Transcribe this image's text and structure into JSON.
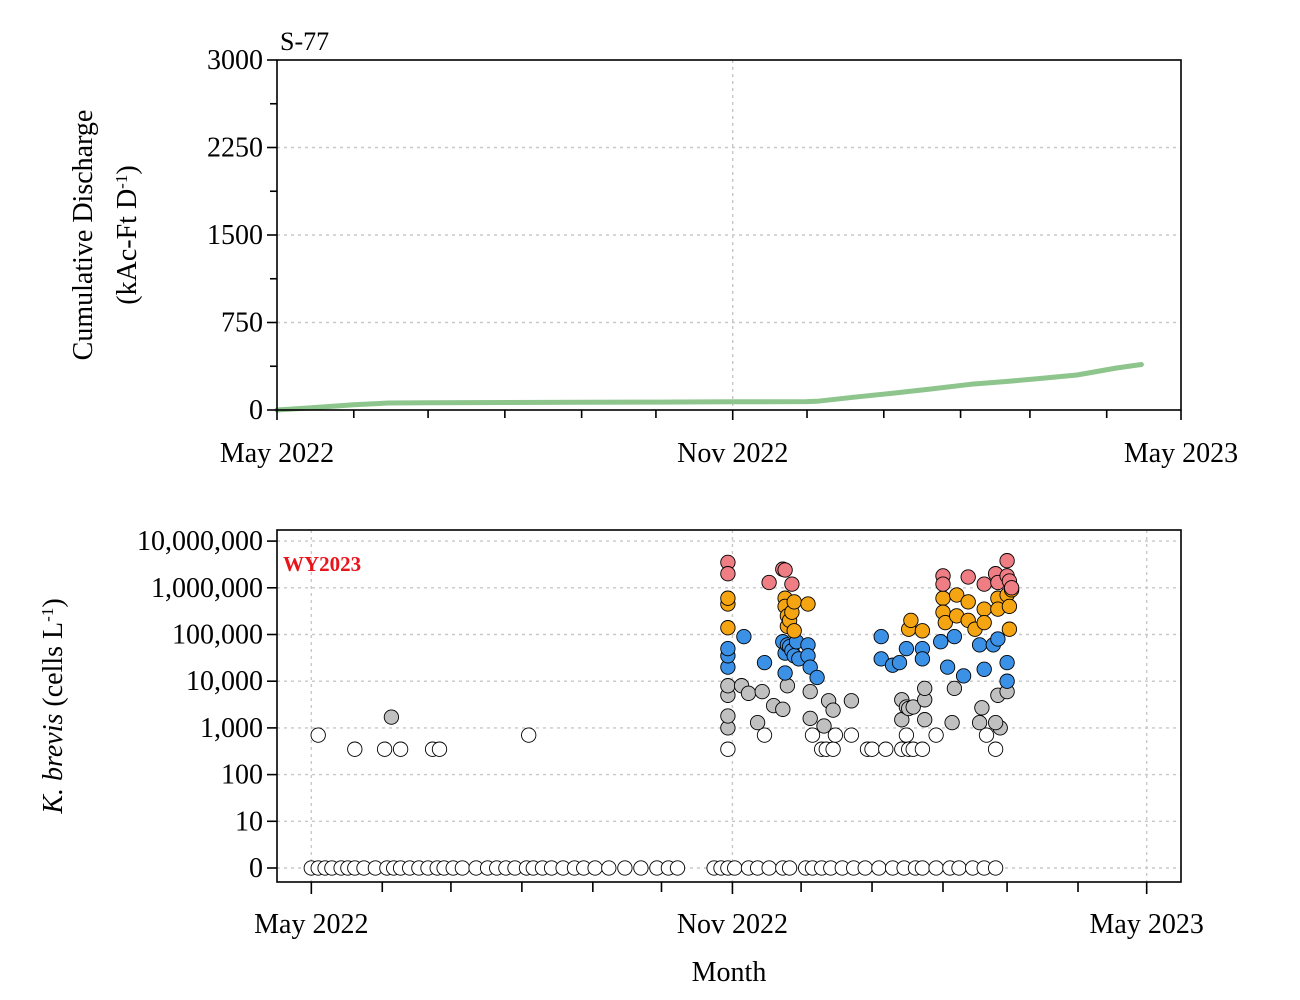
{
  "chart_data": [
    {
      "type": "line",
      "title": "S-77",
      "xlabel": "",
      "ylabel_line1": "Cumulative Discharge",
      "ylabel_line2": "(kAc-Ft D",
      "ylabel_sup": "-1",
      "ylabel_close": ")",
      "xlim": [
        "2022-05-01",
        "2023-05-01"
      ],
      "ylim": [
        0,
        3000
      ],
      "x_ticks": [
        "May 2022",
        "Nov 2022",
        "May 2023"
      ],
      "y_ticks": [
        "0",
        "750",
        "1500",
        "2250",
        "3000"
      ],
      "grid": true,
      "series": [
        {
          "color": "#8dc58d",
          "x": [
            "2022-05-01",
            "2022-05-15",
            "2022-06-01",
            "2022-06-15",
            "2022-07-01",
            "2022-08-01",
            "2022-09-01",
            "2022-10-01",
            "2022-11-01",
            "2022-12-01",
            "2022-12-05",
            "2022-12-20",
            "2023-01-05",
            "2023-01-20",
            "2023-02-05",
            "2023-02-20",
            "2023-03-05",
            "2023-03-20",
            "2023-04-05",
            "2023-04-15"
          ],
          "y": [
            0,
            20,
            45,
            60,
            62,
            64,
            66,
            68,
            70,
            72,
            75,
            110,
            145,
            180,
            220,
            245,
            270,
            300,
            360,
            390
          ]
        }
      ]
    },
    {
      "type": "scatter",
      "title": "",
      "annotation": "WY2023",
      "xlabel": "Month",
      "ylabel_italic": "K. brevis",
      "ylabel_rest": " (cells L",
      "ylabel_sup": "-1",
      "ylabel_close": ")",
      "xlim": [
        "2022-04-16",
        "2023-05-16"
      ],
      "y_scale": "log",
      "y_ticks": [
        "0",
        "10",
        "100",
        "1,000",
        "10,000",
        "100,000",
        "1,000,000",
        "10,000,000"
      ],
      "x_ticks": [
        "May 2022",
        "Nov 2022",
        "May 2023"
      ],
      "grid": true,
      "colors": {
        "zero_or_low": "#ffffff",
        "very_low": "#c0c0c0",
        "low": "#3a91e6",
        "medium": "#f5a512",
        "high": "#ef7d84"
      },
      "points": [
        [
          "2022-05-01",
          0,
          "zero_or_low"
        ],
        [
          "2022-05-04",
          0,
          "zero_or_low"
        ],
        [
          "2022-05-07",
          0,
          "zero_or_low"
        ],
        [
          "2022-05-10",
          0,
          "zero_or_low"
        ],
        [
          "2022-05-14",
          0,
          "zero_or_low"
        ],
        [
          "2022-05-17",
          0,
          "zero_or_low"
        ],
        [
          "2022-05-20",
          0,
          "zero_or_low"
        ],
        [
          "2022-05-24",
          0,
          "zero_or_low"
        ],
        [
          "2022-05-29",
          0,
          "zero_or_low"
        ],
        [
          "2022-06-03",
          0,
          "zero_or_low"
        ],
        [
          "2022-06-06",
          0,
          "zero_or_low"
        ],
        [
          "2022-06-09",
          0,
          "zero_or_low"
        ],
        [
          "2022-06-13",
          0,
          "zero_or_low"
        ],
        [
          "2022-06-17",
          0,
          "zero_or_low"
        ],
        [
          "2022-06-21",
          0,
          "zero_or_low"
        ],
        [
          "2022-06-25",
          0,
          "zero_or_low"
        ],
        [
          "2022-06-28",
          0,
          "zero_or_low"
        ],
        [
          "2022-07-02",
          0,
          "zero_or_low"
        ],
        [
          "2022-07-06",
          0,
          "zero_or_low"
        ],
        [
          "2022-07-12",
          0,
          "zero_or_low"
        ],
        [
          "2022-07-17",
          0,
          "zero_or_low"
        ],
        [
          "2022-07-21",
          0,
          "zero_or_low"
        ],
        [
          "2022-07-25",
          0,
          "zero_or_low"
        ],
        [
          "2022-07-29",
          0,
          "zero_or_low"
        ],
        [
          "2022-08-03",
          0,
          "zero_or_low"
        ],
        [
          "2022-08-06",
          0,
          "zero_or_low"
        ],
        [
          "2022-08-10",
          0,
          "zero_or_low"
        ],
        [
          "2022-08-14",
          0,
          "zero_or_low"
        ],
        [
          "2022-08-19",
          0,
          "zero_or_low"
        ],
        [
          "2022-08-24",
          0,
          "zero_or_low"
        ],
        [
          "2022-08-28",
          0,
          "zero_or_low"
        ],
        [
          "2022-09-02",
          0,
          "zero_or_low"
        ],
        [
          "2022-09-08",
          0,
          "zero_or_low"
        ],
        [
          "2022-09-15",
          0,
          "zero_or_low"
        ],
        [
          "2022-09-22",
          0,
          "zero_or_low"
        ],
        [
          "2022-09-29",
          0,
          "zero_or_low"
        ],
        [
          "2022-10-04",
          0,
          "zero_or_low"
        ],
        [
          "2022-10-08",
          0,
          "zero_or_low"
        ],
        [
          "2022-10-24",
          0,
          "zero_or_low"
        ],
        [
          "2022-10-27",
          0,
          "zero_or_low"
        ],
        [
          "2022-10-30",
          0,
          "zero_or_low"
        ],
        [
          "2022-11-02",
          0,
          "zero_or_low"
        ],
        [
          "2022-11-08",
          0,
          "zero_or_low"
        ],
        [
          "2022-11-12",
          0,
          "zero_or_low"
        ],
        [
          "2022-11-17",
          0,
          "zero_or_low"
        ],
        [
          "2022-11-23",
          0,
          "zero_or_low"
        ],
        [
          "2022-11-26",
          0,
          "zero_or_low"
        ],
        [
          "2022-12-03",
          0,
          "zero_or_low"
        ],
        [
          "2022-12-06",
          0,
          "zero_or_low"
        ],
        [
          "2022-12-10",
          0,
          "zero_or_low"
        ],
        [
          "2022-12-14",
          0,
          "zero_or_low"
        ],
        [
          "2022-12-19",
          0,
          "zero_or_low"
        ],
        [
          "2022-12-24",
          0,
          "zero_or_low"
        ],
        [
          "2022-12-29",
          0,
          "zero_or_low"
        ],
        [
          "2023-01-04",
          0,
          "zero_or_low"
        ],
        [
          "2023-01-10",
          0,
          "zero_or_low"
        ],
        [
          "2023-01-15",
          0,
          "zero_or_low"
        ],
        [
          "2023-01-20",
          0,
          "zero_or_low"
        ],
        [
          "2023-01-23",
          0,
          "zero_or_low"
        ],
        [
          "2023-01-29",
          0,
          "zero_or_low"
        ],
        [
          "2023-02-04",
          0,
          "zero_or_low"
        ],
        [
          "2023-02-08",
          0,
          "zero_or_low"
        ],
        [
          "2023-02-14",
          0,
          "zero_or_low"
        ],
        [
          "2023-02-19",
          0,
          "zero_or_low"
        ],
        [
          "2023-02-24",
          0,
          "zero_or_low"
        ],
        [
          "2022-05-04",
          700,
          "zero_or_low"
        ],
        [
          "2022-05-20",
          350,
          "zero_or_low"
        ],
        [
          "2022-06-02",
          350,
          "zero_or_low"
        ],
        [
          "2022-06-09",
          350,
          "zero_or_low"
        ],
        [
          "2022-06-23",
          350,
          "zero_or_low"
        ],
        [
          "2022-06-26",
          350,
          "zero_or_low"
        ],
        [
          "2022-08-04",
          700,
          "zero_or_low"
        ],
        [
          "2022-06-05",
          1700,
          "very_low"
        ],
        [
          "2022-10-30",
          350,
          "zero_or_low"
        ],
        [
          "2022-11-15",
          700,
          "zero_or_low"
        ],
        [
          "2022-12-06",
          700,
          "zero_or_low"
        ],
        [
          "2022-12-10",
          350,
          "zero_or_low"
        ],
        [
          "2022-12-12",
          350,
          "zero_or_low"
        ],
        [
          "2022-12-15",
          350,
          "zero_or_low"
        ],
        [
          "2022-12-16",
          700,
          "zero_or_low"
        ],
        [
          "2022-12-23",
          700,
          "zero_or_low"
        ],
        [
          "2022-12-30",
          350,
          "zero_or_low"
        ],
        [
          "2023-01-01",
          350,
          "zero_or_low"
        ],
        [
          "2023-01-07",
          350,
          "zero_or_low"
        ],
        [
          "2023-01-14",
          350,
          "zero_or_low"
        ],
        [
          "2023-01-16",
          700,
          "zero_or_low"
        ],
        [
          "2023-01-17",
          350,
          "zero_or_low"
        ],
        [
          "2023-01-19",
          350,
          "zero_or_low"
        ],
        [
          "2023-01-23",
          350,
          "zero_or_low"
        ],
        [
          "2023-01-29",
          700,
          "zero_or_low"
        ],
        [
          "2023-02-20",
          700,
          "zero_or_low"
        ],
        [
          "2023-02-24",
          350,
          "zero_or_low"
        ],
        [
          "2023-02-26",
          1000,
          "very_low"
        ],
        [
          "2022-10-30",
          1000,
          "very_low"
        ],
        [
          "2022-10-30",
          1800,
          "very_low"
        ],
        [
          "2022-10-30",
          5000,
          "very_low"
        ],
        [
          "2022-10-30",
          8000,
          "very_low"
        ],
        [
          "2022-11-05",
          8000,
          "very_low"
        ],
        [
          "2022-11-08",
          5500,
          "very_low"
        ],
        [
          "2022-11-12",
          1300,
          "very_low"
        ],
        [
          "2022-11-14",
          6000,
          "very_low"
        ],
        [
          "2022-11-19",
          3000,
          "very_low"
        ],
        [
          "2022-11-23",
          2500,
          "very_low"
        ],
        [
          "2022-11-25",
          8000,
          "very_low"
        ],
        [
          "2022-12-05",
          6000,
          "very_low"
        ],
        [
          "2022-12-05",
          1600,
          "very_low"
        ],
        [
          "2022-12-11",
          1100,
          "very_low"
        ],
        [
          "2022-12-13",
          3800,
          "very_low"
        ],
        [
          "2022-12-15",
          2400,
          "very_low"
        ],
        [
          "2022-12-23",
          3800,
          "very_low"
        ],
        [
          "2023-01-14",
          4000,
          "very_low"
        ],
        [
          "2023-01-14",
          1500,
          "very_low"
        ],
        [
          "2023-01-16",
          2800,
          "very_low"
        ],
        [
          "2023-01-17",
          2600,
          "very_low"
        ],
        [
          "2023-01-19",
          2800,
          "very_low"
        ],
        [
          "2023-01-24",
          1500,
          "very_low"
        ],
        [
          "2023-01-24",
          4000,
          "very_low"
        ],
        [
          "2023-01-24",
          7000,
          "very_low"
        ],
        [
          "2023-02-05",
          1300,
          "very_low"
        ],
        [
          "2023-02-06",
          7000,
          "very_low"
        ],
        [
          "2023-02-17",
          1300,
          "very_low"
        ],
        [
          "2023-02-18",
          2700,
          "very_low"
        ],
        [
          "2023-02-24",
          1300,
          "very_low"
        ],
        [
          "2023-02-25",
          5000,
          "very_low"
        ],
        [
          "2023-03-01",
          6000,
          "very_low"
        ],
        [
          "2022-10-30",
          20000,
          "low"
        ],
        [
          "2022-10-30",
          35000,
          "low"
        ],
        [
          "2022-10-30",
          50000,
          "low"
        ],
        [
          "2022-11-06",
          90000,
          "low"
        ],
        [
          "2022-11-15",
          25000,
          "low"
        ],
        [
          "2022-11-23",
          70000,
          "low"
        ],
        [
          "2022-11-24",
          15000,
          "low"
        ],
        [
          "2022-11-24",
          40000,
          "low"
        ],
        [
          "2022-11-25",
          60000,
          "low"
        ],
        [
          "2022-11-26",
          55000,
          "low"
        ],
        [
          "2022-11-27",
          45000,
          "low"
        ],
        [
          "2022-11-28",
          35000,
          "low"
        ],
        [
          "2022-11-29",
          70000,
          "low"
        ],
        [
          "2022-11-30",
          30000,
          "low"
        ],
        [
          "2022-12-04",
          60000,
          "low"
        ],
        [
          "2022-12-04",
          35000,
          "low"
        ],
        [
          "2022-12-05",
          20000,
          "low"
        ],
        [
          "2022-12-08",
          12000,
          "low"
        ],
        [
          "2023-01-05",
          90000,
          "low"
        ],
        [
          "2023-01-05",
          30000,
          "low"
        ],
        [
          "2023-01-10",
          22000,
          "low"
        ],
        [
          "2023-01-13",
          25000,
          "low"
        ],
        [
          "2023-01-16",
          50000,
          "low"
        ],
        [
          "2023-01-23",
          50000,
          "low"
        ],
        [
          "2023-01-23",
          30000,
          "low"
        ],
        [
          "2023-01-31",
          70000,
          "low"
        ],
        [
          "2023-02-03",
          20000,
          "low"
        ],
        [
          "2023-02-06",
          90000,
          "low"
        ],
        [
          "2023-02-10",
          13000,
          "low"
        ],
        [
          "2023-02-17",
          60000,
          "low"
        ],
        [
          "2023-02-19",
          18000,
          "low"
        ],
        [
          "2023-02-23",
          60000,
          "low"
        ],
        [
          "2023-02-25",
          80000,
          "low"
        ],
        [
          "2023-03-01",
          25000,
          "low"
        ],
        [
          "2023-03-01",
          10000,
          "low"
        ],
        [
          "2022-10-30",
          140000,
          "medium"
        ],
        [
          "2022-10-30",
          450000,
          "medium"
        ],
        [
          "2022-10-30",
          600000,
          "medium"
        ],
        [
          "2022-11-24",
          600000,
          "medium"
        ],
        [
          "2022-11-24",
          400000,
          "medium"
        ],
        [
          "2022-11-25",
          250000,
          "medium"
        ],
        [
          "2022-11-25",
          150000,
          "medium"
        ],
        [
          "2022-11-26",
          200000,
          "medium"
        ],
        [
          "2022-11-27",
          300000,
          "medium"
        ],
        [
          "2022-11-28",
          500000,
          "medium"
        ],
        [
          "2022-11-28",
          120000,
          "medium"
        ],
        [
          "2022-12-04",
          450000,
          "medium"
        ],
        [
          "2023-01-17",
          130000,
          "medium"
        ],
        [
          "2023-01-18",
          200000,
          "medium"
        ],
        [
          "2023-01-23",
          120000,
          "medium"
        ],
        [
          "2023-02-01",
          600000,
          "medium"
        ],
        [
          "2023-02-01",
          300000,
          "medium"
        ],
        [
          "2023-02-02",
          180000,
          "medium"
        ],
        [
          "2023-02-07",
          700000,
          "medium"
        ],
        [
          "2023-02-07",
          250000,
          "medium"
        ],
        [
          "2023-02-12",
          500000,
          "medium"
        ],
        [
          "2023-02-12",
          200000,
          "medium"
        ],
        [
          "2023-02-15",
          130000,
          "medium"
        ],
        [
          "2023-02-19",
          350000,
          "medium"
        ],
        [
          "2023-02-19",
          180000,
          "medium"
        ],
        [
          "2023-02-25",
          600000,
          "medium"
        ],
        [
          "2023-02-25",
          350000,
          "medium"
        ],
        [
          "2023-03-01",
          700000,
          "medium"
        ],
        [
          "2023-03-02",
          400000,
          "medium"
        ],
        [
          "2023-03-02",
          130000,
          "medium"
        ],
        [
          "2023-03-03",
          900000,
          "medium"
        ],
        [
          "2022-10-30",
          3500000,
          "high"
        ],
        [
          "2022-10-30",
          2000000,
          "high"
        ],
        [
          "2022-11-17",
          1300000,
          "high"
        ],
        [
          "2022-11-23",
          2500000,
          "high"
        ],
        [
          "2022-11-24",
          2400000,
          "high"
        ],
        [
          "2022-11-27",
          1200000,
          "high"
        ],
        [
          "2023-02-01",
          1800000,
          "high"
        ],
        [
          "2023-02-01",
          1200000,
          "high"
        ],
        [
          "2023-02-12",
          1700000,
          "high"
        ],
        [
          "2023-02-19",
          1200000,
          "high"
        ],
        [
          "2023-02-24",
          2000000,
          "high"
        ],
        [
          "2023-02-25",
          1300000,
          "high"
        ],
        [
          "2023-03-01",
          3800000,
          "high"
        ],
        [
          "2023-03-01",
          1800000,
          "high"
        ],
        [
          "2023-03-02",
          1400000,
          "high"
        ],
        [
          "2023-03-03",
          1000000,
          "high"
        ]
      ]
    }
  ]
}
